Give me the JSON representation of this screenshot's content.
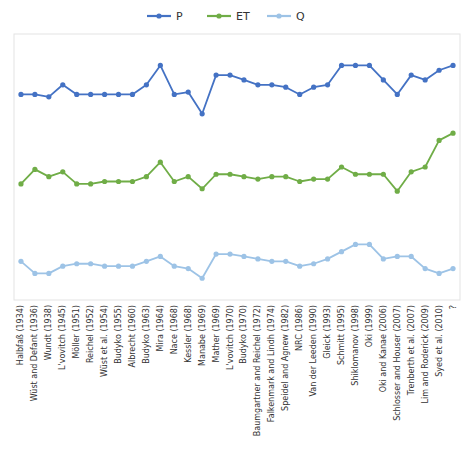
{
  "chart_data": {
    "type": "line",
    "categories": [
      "Halbfaß (1934)",
      "Wüst and Defant (1936)",
      "Wundt (1938)",
      "L'vovitch (1945)",
      "Möller (1951)",
      "Reichel (1952)",
      "Wüst et al. (1954)",
      "Budyko (1955)",
      "Albrecht (1960)",
      "Budyko (1963)",
      "Mira (1964)",
      "Nace (1968)",
      "Kessler (1968)",
      "Manabe (1969)",
      "Mather (1969)",
      "L'vovitch (1970)",
      "Budyko (1970)",
      "Baumgartner and Reichel (1972)",
      "Falkenmark and Lindh (1974)",
      "Speidel and Agnew (1982)",
      "NRC (1986)",
      "Van der Leeden (1990)",
      "Gleick (1993)",
      "Schmitt (1995)",
      "Shiklomanov (1998)",
      "Oki (1999)",
      "Oki and Kanae (2006)",
      "Schlosser and Houser (2007)",
      "Trenberth et al. (2007)",
      "Lim and Roderick (2009)",
      "Syed et al. (2010)",
      "?"
    ],
    "series": [
      {
        "name": "P",
        "color": "#4472c4",
        "marker": "circle",
        "values": [
          107,
          107,
          106,
          111,
          107,
          107,
          107,
          107,
          107,
          111,
          119,
          107,
          108,
          99,
          115,
          115,
          113,
          111,
          111,
          110,
          107,
          110,
          111,
          119,
          119,
          119,
          113,
          107,
          115,
          113,
          117,
          119
        ]
      },
      {
        "name": "ET",
        "color": "#70ad47",
        "marker": "circle",
        "values": [
          70,
          76,
          73,
          75,
          70,
          70,
          71,
          71,
          71,
          73,
          79,
          71,
          73,
          68,
          74,
          74,
          73,
          72,
          73,
          73,
          71,
          72,
          72,
          77,
          74,
          74,
          74,
          67,
          75,
          77,
          88,
          91
        ]
      },
      {
        "name": "Q",
        "color": "#9dc3e6",
        "marker": "circle",
        "values": [
          38,
          33,
          33,
          36,
          37,
          37,
          36,
          36,
          36,
          38,
          40,
          36,
          35,
          31,
          41,
          41,
          40,
          39,
          38,
          38,
          36,
          37,
          39,
          42,
          45,
          45,
          39,
          40,
          40,
          35,
          33,
          35
        ]
      }
    ],
    "ylim": [
      22,
      132
    ],
    "grid": false,
    "legend": "top",
    "tick_labels": "x"
  }
}
